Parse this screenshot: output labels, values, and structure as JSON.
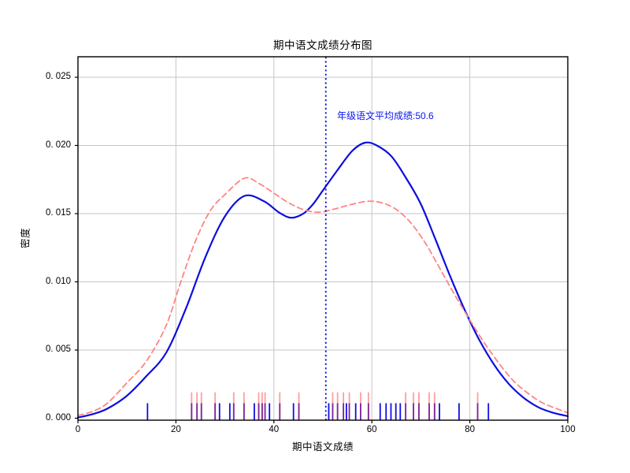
{
  "title": "期中语文成绩分布图",
  "axes": {
    "xlabel": "期中语文成绩",
    "ylabel": "密度",
    "x_tick_labels": [
      "0",
      "20",
      "40",
      "60",
      "80",
      "100"
    ],
    "x_tick_values": [
      0,
      20,
      40,
      60,
      80,
      100
    ],
    "y_tick_labels": [
      "0. 000",
      "0. 005",
      "0. 010",
      "0. 015",
      "0. 020",
      "0. 025"
    ],
    "y_tick_values": [
      0,
      0.005,
      0.01,
      0.015,
      0.02,
      0.025
    ],
    "grid": true,
    "grid_color": "#c6c6c6",
    "spine_color": "#000000"
  },
  "chart_data": {
    "type": "line",
    "title": "期中语文成绩分布图",
    "xlabel": "期中语文成绩",
    "ylabel": "密度",
    "xlim": [
      0,
      100
    ],
    "ylim": [
      -0.00015,
      0.02652
    ],
    "grid": true,
    "legend": "none",
    "series": [
      {
        "id": "kde-solid-blue",
        "style": "solid",
        "color": "#0d0de0",
        "width": 2.2,
        "x": [
          0,
          3,
          6,
          10,
          14,
          18,
          22,
          26,
          30,
          34,
          38,
          41,
          43.5,
          46,
          48,
          50,
          53,
          56,
          58.6,
          61,
          64,
          67,
          70,
          73,
          76,
          79,
          82,
          85,
          88,
          91,
          94,
          97,
          100
        ],
        "y": [
          5e-05,
          0.0003,
          0.0007,
          0.00165,
          0.0031,
          0.0048,
          0.008,
          0.0118,
          0.0148,
          0.0163,
          0.0159,
          0.0151,
          0.0147,
          0.015,
          0.0157,
          0.0167,
          0.0182,
          0.0196,
          0.0202,
          0.02,
          0.0192,
          0.0176,
          0.0157,
          0.0131,
          0.0104,
          0.0079,
          0.0057,
          0.0039,
          0.0025,
          0.0015,
          0.0008,
          0.0004,
          0.00015
        ]
      },
      {
        "id": "kde-dashed-red",
        "style": "dashed",
        "color": "#ff8585",
        "width": 1.8,
        "x": [
          0,
          3,
          6,
          10,
          14,
          18,
          21,
          24,
          27,
          30,
          34,
          37,
          40,
          43,
          46,
          49,
          52,
          55,
          59,
          62,
          65,
          68,
          71,
          74,
          77,
          80,
          83,
          86,
          89,
          92,
          95,
          100
        ],
        "y": [
          0.0002,
          0.0005,
          0.0011,
          0.0026,
          0.0042,
          0.0068,
          0.01,
          0.013,
          0.0152,
          0.0164,
          0.0176,
          0.0172,
          0.0165,
          0.0158,
          0.0153,
          0.0151,
          0.0153,
          0.0156,
          0.0159,
          0.0158,
          0.0153,
          0.0143,
          0.0128,
          0.0109,
          0.009,
          0.0072,
          0.0055,
          0.004,
          0.0027,
          0.0018,
          0.0011,
          0.0004
        ]
      }
    ],
    "rug": [
      {
        "id": "rug-blue",
        "color": "#0f0fe0",
        "opacity": 1,
        "height": 0.0011,
        "x": [
          14.2,
          23.2,
          24.3,
          25.2,
          28.0,
          28.9,
          31.0,
          31.8,
          33.9,
          36.0,
          36.9,
          37.6,
          38.2,
          39.1,
          41.2,
          44.0,
          45.1,
          51.2,
          52.0,
          53.0,
          54.2,
          54.8,
          55.4,
          56.7,
          57.7,
          59.3,
          61.7,
          62.9,
          63.9,
          64.9,
          65.8,
          66.9,
          68.5,
          69.6,
          71.7,
          72.8,
          73.8,
          77.8,
          81.6,
          83.8
        ]
      },
      {
        "id": "rug-red",
        "color": "#ff4040",
        "opacity": 0.5,
        "height": 0.0019,
        "x": [
          23.2,
          24.3,
          25.2,
          28.0,
          31.8,
          33.9,
          36.9,
          37.6,
          38.2,
          41.2,
          45.1,
          52.0,
          53.0,
          54.2,
          55.4,
          57.7,
          59.3,
          66.9,
          68.5,
          69.6,
          71.7,
          72.8,
          81.6
        ]
      }
    ],
    "vline": {
      "x": 50.6,
      "style": "dotted",
      "color": "#0010d0",
      "width": 1.8
    },
    "annotation": {
      "text": "年级语文平均成绩:50.6",
      "x": 52.9,
      "y": 0.0221,
      "color": "#0a16f0"
    },
    "mean_value": 50.6
  }
}
